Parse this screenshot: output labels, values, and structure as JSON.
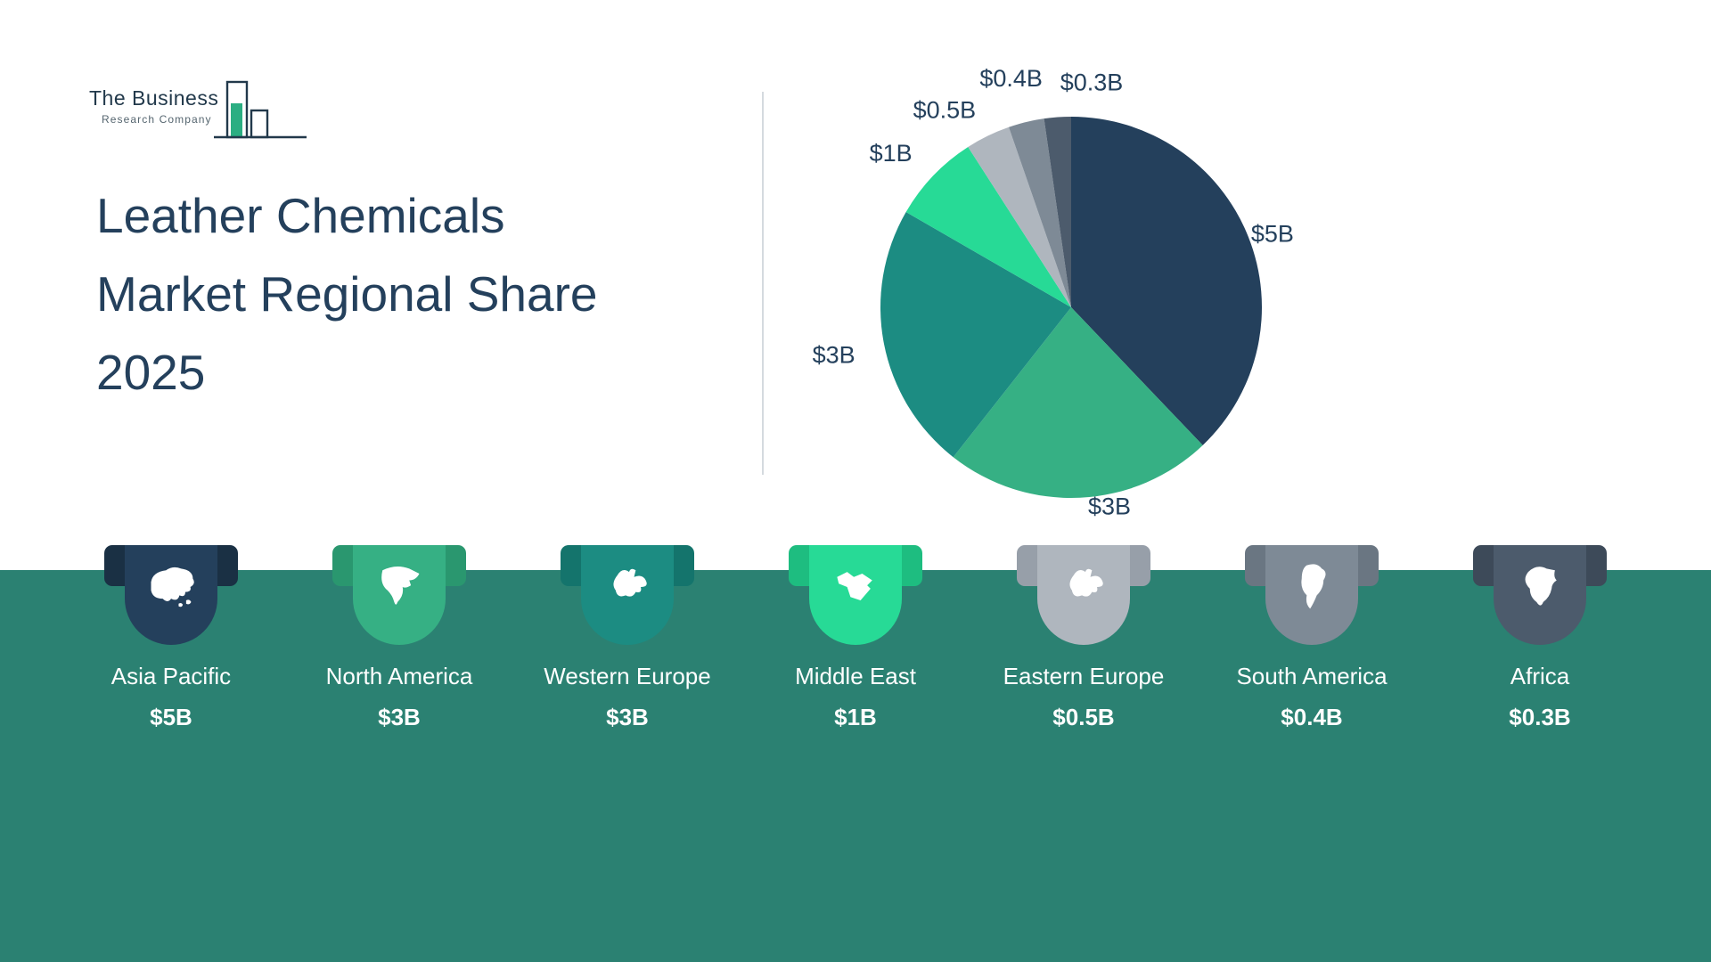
{
  "brand": {
    "name_line1": "The Business",
    "name_line2": "Research Company"
  },
  "header": {
    "title_lines": [
      "Leather Chemicals",
      "Market Regional Share",
      "2025"
    ]
  },
  "chart_data": {
    "type": "pie",
    "title": "Leather Chemicals Market Regional Share 2025",
    "categories": [
      "Asia Pacific",
      "North America",
      "Western Europe",
      "Middle East",
      "Eastern Europe",
      "South America",
      "Africa"
    ],
    "values": [
      5,
      3,
      3,
      1,
      0.5,
      0.4,
      0.3
    ],
    "labels": [
      "$5B",
      "$3B",
      "$3B",
      "$1B",
      "$0.5B",
      "$0.4B",
      "$0.3B"
    ],
    "colors": [
      "#24405C",
      "#36B084",
      "#1C8C82",
      "#27DA96",
      "#AFB6BE",
      "#7E8A96",
      "#4C5B6C"
    ],
    "start_angle_deg": 0,
    "direction": "clockwise",
    "legend_position": "bottom"
  },
  "regions": [
    {
      "name": "Asia Pacific",
      "value": "$5B",
      "color": "#24405C",
      "fold": "#1A3044",
      "icon": "asia-pacific-icon"
    },
    {
      "name": "North America",
      "value": "$3B",
      "color": "#36B084",
      "fold": "#2A976F",
      "icon": "north-america-icon"
    },
    {
      "name": "Western Europe",
      "value": "$3B",
      "color": "#1C8C82",
      "fold": "#14746C",
      "icon": "western-europe-icon"
    },
    {
      "name": "Middle East",
      "value": "$1B",
      "color": "#27DA96",
      "fold": "#1EBD80",
      "icon": "middle-east-icon"
    },
    {
      "name": "Eastern Europe",
      "value": "$0.5B",
      "color": "#AFB6BE",
      "fold": "#979FA9",
      "icon": "eastern-europe-icon"
    },
    {
      "name": "South America",
      "value": "$0.4B",
      "color": "#7E8A96",
      "fold": "#6A7682",
      "icon": "south-america-icon"
    },
    {
      "name": "Africa",
      "value": "$0.3B",
      "color": "#4C5B6C",
      "fold": "#3D4A59",
      "icon": "africa-icon"
    }
  ],
  "theme": {
    "background": "#FFFFFF",
    "band": "#2B8172",
    "title_color": "#24405C",
    "divider": "#D5DADF",
    "label_color": "#24405C"
  }
}
